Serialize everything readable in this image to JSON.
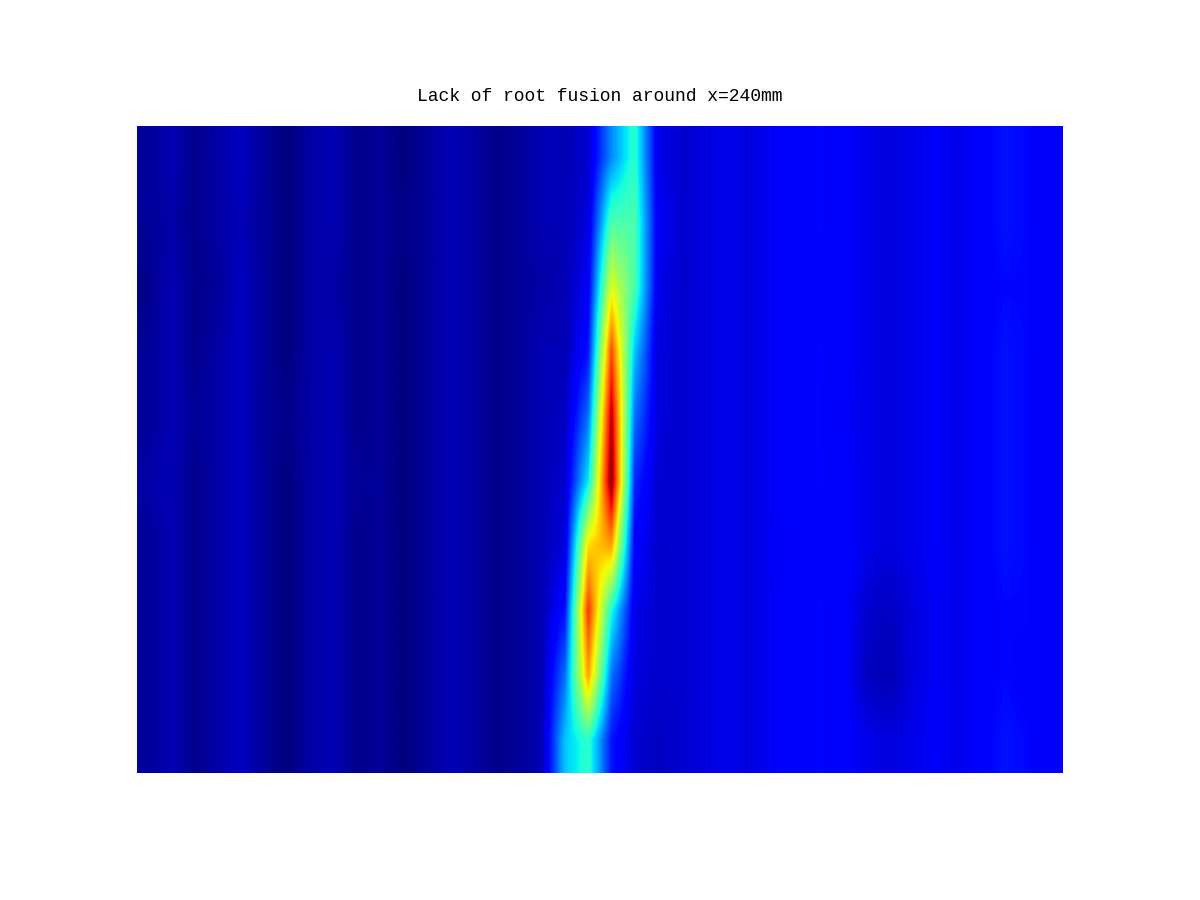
{
  "chart_data": {
    "type": "heatmap",
    "title": "Lack of root fusion around x=240mm",
    "color": "jet",
    "tick_labels": false,
    "cells": [
      [
        0.1,
        0.12,
        0.09,
        0.11,
        0.13,
        0.1,
        0.08,
        0.11,
        0.12,
        0.09,
        0.1,
        0.08,
        0.1,
        0.12,
        0.11,
        0.09,
        0.1,
        0.12,
        0.12,
        0.14,
        0.3,
        0.42,
        0.16,
        0.14,
        0.15,
        0.16,
        0.15,
        0.17,
        0.18,
        0.19,
        0.18,
        0.16,
        0.15,
        0.16,
        0.17,
        0.16,
        0.18,
        0.2,
        0.19,
        0.17
      ],
      [
        0.1,
        0.11,
        0.09,
        0.11,
        0.12,
        0.1,
        0.08,
        0.11,
        0.12,
        0.09,
        0.1,
        0.09,
        0.1,
        0.12,
        0.11,
        0.09,
        0.1,
        0.12,
        0.12,
        0.15,
        0.45,
        0.45,
        0.17,
        0.14,
        0.15,
        0.16,
        0.15,
        0.17,
        0.18,
        0.19,
        0.18,
        0.16,
        0.15,
        0.16,
        0.17,
        0.16,
        0.18,
        0.2,
        0.19,
        0.17
      ],
      [
        0.09,
        0.12,
        0.09,
        0.1,
        0.13,
        0.1,
        0.08,
        0.11,
        0.11,
        0.09,
        0.1,
        0.08,
        0.1,
        0.12,
        0.11,
        0.09,
        0.1,
        0.11,
        0.12,
        0.17,
        0.6,
        0.45,
        0.16,
        0.14,
        0.15,
        0.16,
        0.15,
        0.17,
        0.18,
        0.18,
        0.18,
        0.16,
        0.15,
        0.16,
        0.17,
        0.16,
        0.18,
        0.19,
        0.19,
        0.17
      ],
      [
        0.1,
        0.12,
        0.09,
        0.11,
        0.13,
        0.1,
        0.08,
        0.11,
        0.12,
        0.09,
        0.1,
        0.08,
        0.1,
        0.12,
        0.11,
        0.09,
        0.1,
        0.12,
        0.12,
        0.2,
        0.78,
        0.35,
        0.15,
        0.14,
        0.15,
        0.16,
        0.15,
        0.17,
        0.18,
        0.19,
        0.18,
        0.16,
        0.15,
        0.16,
        0.17,
        0.16,
        0.18,
        0.2,
        0.19,
        0.17
      ],
      [
        0.1,
        0.12,
        0.1,
        0.11,
        0.13,
        0.1,
        0.09,
        0.11,
        0.12,
        0.09,
        0.1,
        0.08,
        0.1,
        0.12,
        0.11,
        0.09,
        0.1,
        0.12,
        0.13,
        0.28,
        0.88,
        0.28,
        0.15,
        0.14,
        0.15,
        0.16,
        0.15,
        0.17,
        0.18,
        0.19,
        0.17,
        0.16,
        0.15,
        0.16,
        0.17,
        0.16,
        0.18,
        0.2,
        0.19,
        0.17
      ],
      [
        0.11,
        0.12,
        0.09,
        0.11,
        0.13,
        0.1,
        0.08,
        0.11,
        0.12,
        0.1,
        0.1,
        0.08,
        0.1,
        0.12,
        0.11,
        0.09,
        0.1,
        0.12,
        0.14,
        0.38,
        0.92,
        0.22,
        0.14,
        0.14,
        0.15,
        0.16,
        0.15,
        0.17,
        0.18,
        0.19,
        0.18,
        0.16,
        0.15,
        0.16,
        0.17,
        0.16,
        0.18,
        0.2,
        0.19,
        0.17
      ],
      [
        0.1,
        0.12,
        0.09,
        0.11,
        0.13,
        0.1,
        0.08,
        0.11,
        0.12,
        0.09,
        0.1,
        0.08,
        0.1,
        0.12,
        0.11,
        0.09,
        0.1,
        0.12,
        0.15,
        0.65,
        0.7,
        0.18,
        0.14,
        0.14,
        0.15,
        0.16,
        0.15,
        0.17,
        0.17,
        0.18,
        0.18,
        0.16,
        0.15,
        0.16,
        0.17,
        0.16,
        0.18,
        0.2,
        0.19,
        0.17
      ],
      [
        0.1,
        0.12,
        0.09,
        0.11,
        0.13,
        0.1,
        0.08,
        0.11,
        0.12,
        0.09,
        0.1,
        0.08,
        0.1,
        0.12,
        0.11,
        0.09,
        0.1,
        0.12,
        0.2,
        0.8,
        0.4,
        0.16,
        0.14,
        0.14,
        0.15,
        0.16,
        0.15,
        0.17,
        0.18,
        0.19,
        0.18,
        0.14,
        0.13,
        0.15,
        0.17,
        0.16,
        0.18,
        0.19,
        0.19,
        0.17
      ],
      [
        0.1,
        0.12,
        0.09,
        0.11,
        0.13,
        0.1,
        0.08,
        0.11,
        0.12,
        0.09,
        0.1,
        0.08,
        0.1,
        0.12,
        0.11,
        0.09,
        0.1,
        0.12,
        0.28,
        0.7,
        0.28,
        0.15,
        0.14,
        0.14,
        0.15,
        0.16,
        0.15,
        0.17,
        0.18,
        0.19,
        0.18,
        0.13,
        0.12,
        0.15,
        0.17,
        0.16,
        0.18,
        0.19,
        0.18,
        0.17
      ],
      [
        0.1,
        0.12,
        0.09,
        0.11,
        0.13,
        0.1,
        0.08,
        0.11,
        0.12,
        0.09,
        0.1,
        0.08,
        0.1,
        0.12,
        0.11,
        0.09,
        0.1,
        0.12,
        0.35,
        0.42,
        0.2,
        0.14,
        0.13,
        0.14,
        0.15,
        0.16,
        0.15,
        0.17,
        0.18,
        0.19,
        0.18,
        0.16,
        0.15,
        0.16,
        0.17,
        0.16,
        0.18,
        0.2,
        0.19,
        0.17
      ]
    ]
  }
}
